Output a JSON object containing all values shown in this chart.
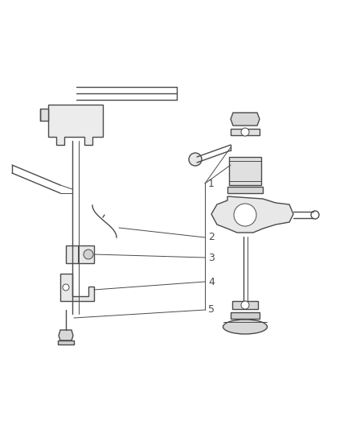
{
  "background_color": "#ffffff",
  "line_color": "#4a4a4a",
  "label_color": "#4a4a4a",
  "figure_width": 4.38,
  "figure_height": 5.33,
  "dpi": 100
}
